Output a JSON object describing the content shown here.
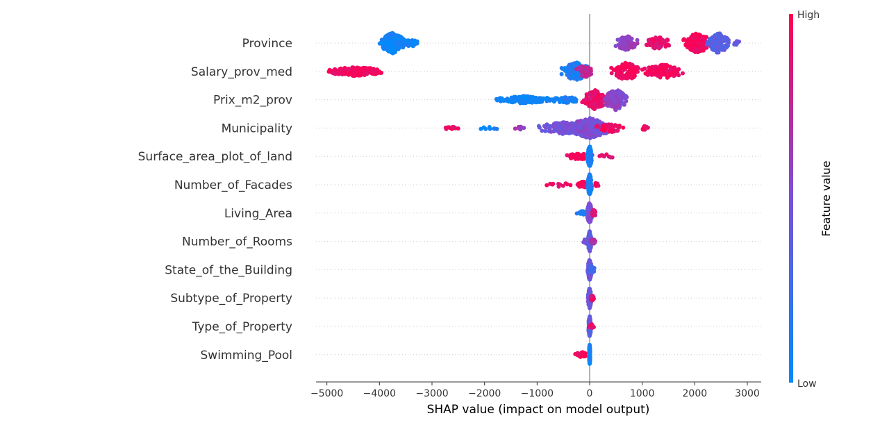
{
  "chart_data": {
    "type": "scatter",
    "subtype": "beeswarm",
    "xlabel": "SHAP value (impact on model output)",
    "xlim": [
      -5200,
      3250
    ],
    "xticks": [
      -5000,
      -4000,
      -3000,
      -2000,
      -1000,
      0,
      1000,
      2000,
      3000
    ],
    "xtick_labels": [
      "−5000",
      "−4000",
      "−3000",
      "−2000",
      "−1000",
      "0",
      "1000",
      "2000",
      "3000"
    ],
    "colorbar": {
      "title": "Feature value",
      "high_label": "High",
      "low_label": "Low",
      "low_color": "#008bfb",
      "mid_color": "#7b4fd8",
      "high_color": "#ff0052"
    },
    "features": [
      {
        "name": "Province",
        "clusters": [
          {
            "center": -3750,
            "width": 380,
            "count": 260,
            "spread": 1.0,
            "fv": 0.05
          },
          {
            "center": -3400,
            "width": 280,
            "count": 35,
            "spread": 0.35,
            "fv": 0.05
          },
          {
            "center": 700,
            "width": 330,
            "count": 90,
            "spread": 0.7,
            "fv": 0.6
          },
          {
            "center": 1300,
            "width": 380,
            "count": 70,
            "spread": 0.6,
            "fv": 0.9
          },
          {
            "center": 2050,
            "width": 380,
            "count": 160,
            "spread": 1.0,
            "fv": 0.97
          },
          {
            "center": 2450,
            "width": 320,
            "count": 170,
            "spread": 1.0,
            "fv": 0.35
          },
          {
            "center": 2800,
            "width": 140,
            "count": 8,
            "spread": 0.25,
            "fv": 0.45
          }
        ]
      },
      {
        "name": "Salary_prov_med",
        "clusters": [
          {
            "center": -4450,
            "width": 820,
            "count": 170,
            "spread": 0.45,
            "fv": 0.97
          },
          {
            "center": -250,
            "width": 420,
            "count": 130,
            "spread": 0.9,
            "fv": 0.1
          },
          {
            "center": -100,
            "width": 260,
            "count": 50,
            "spread": 0.6,
            "fv": 0.75
          },
          {
            "center": 700,
            "width": 450,
            "count": 110,
            "spread": 0.85,
            "fv": 0.95
          },
          {
            "center": 1400,
            "width": 600,
            "count": 110,
            "spread": 0.7,
            "fv": 0.97
          }
        ]
      },
      {
        "name": "Prix_m2_prov",
        "clusters": [
          {
            "center": -1250,
            "width": 860,
            "count": 150,
            "spread": 0.35,
            "fv": 0.05
          },
          {
            "center": -450,
            "width": 500,
            "count": 50,
            "spread": 0.3,
            "fv": 0.1
          },
          {
            "center": 100,
            "width": 360,
            "count": 150,
            "spread": 0.95,
            "fv": 0.92
          },
          {
            "center": 500,
            "width": 350,
            "count": 160,
            "spread": 1.0,
            "fv": 0.55
          }
        ]
      },
      {
        "name": "Municipality",
        "clusters": [
          {
            "center": -2650,
            "width": 260,
            "count": 14,
            "spread": 0.15,
            "fv": 0.95
          },
          {
            "center": -1900,
            "width": 350,
            "count": 8,
            "spread": 0.15,
            "fv": 0.05
          },
          {
            "center": -1300,
            "width": 250,
            "count": 8,
            "spread": 0.15,
            "fv": 0.6
          },
          {
            "center": -500,
            "width": 700,
            "count": 110,
            "spread": 0.6,
            "fv": 0.45
          },
          {
            "center": 0,
            "width": 600,
            "count": 260,
            "spread": 1.0,
            "fv": 0.5
          },
          {
            "center": 400,
            "width": 450,
            "count": 40,
            "spread": 0.4,
            "fv": 0.95
          },
          {
            "center": 1050,
            "width": 120,
            "count": 10,
            "spread": 0.2,
            "fv": 0.95
          }
        ]
      },
      {
        "name": "Surface_area_plot_of_land",
        "clusters": [
          {
            "center": -200,
            "width": 430,
            "count": 70,
            "spread": 0.3,
            "fv": 0.95
          },
          {
            "center": 0,
            "width": 70,
            "count": 150,
            "spread": 1.0,
            "fv": 0.08
          },
          {
            "center": 300,
            "width": 300,
            "count": 8,
            "spread": 0.2,
            "fv": 0.9
          }
        ]
      },
      {
        "name": "Number_of_Facades",
        "clusters": [
          {
            "center": -550,
            "width": 400,
            "count": 12,
            "spread": 0.2,
            "fv": 0.95
          },
          {
            "center": -120,
            "width": 220,
            "count": 40,
            "spread": 0.3,
            "fv": 0.95
          },
          {
            "center": 0,
            "width": 60,
            "count": 150,
            "spread": 1.0,
            "fv": 0.1
          },
          {
            "center": 120,
            "width": 120,
            "count": 8,
            "spread": 0.2,
            "fv": 0.95
          }
        ]
      },
      {
        "name": "Living_Area",
        "clusters": [
          {
            "center": -150,
            "width": 180,
            "count": 15,
            "spread": 0.2,
            "fv": 0.1
          },
          {
            "center": 0,
            "width": 80,
            "count": 150,
            "spread": 1.0,
            "fv": 0.5
          },
          {
            "center": 80,
            "width": 120,
            "count": 25,
            "spread": 0.3,
            "fv": 0.9
          }
        ]
      },
      {
        "name": "Number_of_Rooms",
        "clusters": [
          {
            "center": -60,
            "width": 110,
            "count": 25,
            "spread": 0.25,
            "fv": 0.5
          },
          {
            "center": 0,
            "width": 50,
            "count": 130,
            "spread": 1.0,
            "fv": 0.4
          },
          {
            "center": 60,
            "width": 90,
            "count": 20,
            "spread": 0.25,
            "fv": 0.7
          }
        ]
      },
      {
        "name": "State_of_the_Building",
        "clusters": [
          {
            "center": 0,
            "width": 60,
            "count": 130,
            "spread": 1.0,
            "fv": 0.4
          },
          {
            "center": 60,
            "width": 80,
            "count": 20,
            "spread": 0.25,
            "fv": 0.2
          }
        ]
      },
      {
        "name": "Subtype_of_Property",
        "clusters": [
          {
            "center": 0,
            "width": 50,
            "count": 130,
            "spread": 1.0,
            "fv": 0.45
          },
          {
            "center": 50,
            "width": 60,
            "count": 15,
            "spread": 0.25,
            "fv": 0.9
          }
        ]
      },
      {
        "name": "Type_of_Property",
        "clusters": [
          {
            "center": 0,
            "width": 40,
            "count": 120,
            "spread": 1.0,
            "fv": 0.4
          },
          {
            "center": 40,
            "width": 80,
            "count": 15,
            "spread": 0.25,
            "fv": 0.95
          }
        ]
      },
      {
        "name": "Swimming_Pool",
        "clusters": [
          {
            "center": -150,
            "width": 260,
            "count": 25,
            "spread": 0.25,
            "fv": 0.97
          },
          {
            "center": 0,
            "width": 15,
            "count": 200,
            "spread": 1.0,
            "fv": 0.05
          }
        ]
      }
    ]
  }
}
